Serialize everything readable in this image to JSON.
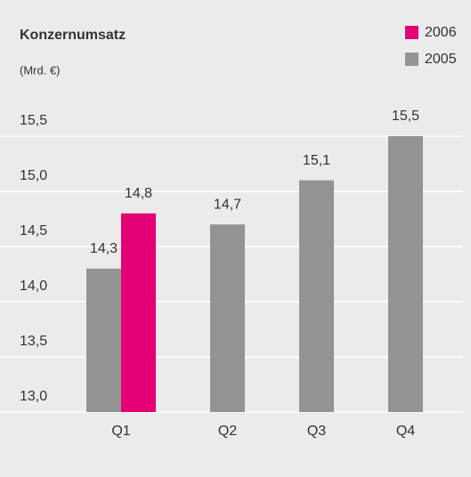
{
  "chart_data": {
    "type": "bar",
    "title": "Konzernumsatz",
    "subtitle": "(Mrd. €)",
    "categories": [
      "Q1",
      "Q2",
      "Q3",
      "Q4"
    ],
    "series": [
      {
        "name": "2006",
        "color": "#e20074",
        "values": [
          14.8,
          null,
          null,
          null
        ],
        "value_labels": [
          "14,8",
          null,
          null,
          null
        ]
      },
      {
        "name": "2005",
        "color": "#939393",
        "values": [
          14.3,
          14.7,
          15.1,
          15.5
        ],
        "value_labels": [
          "14,3",
          "14,7",
          "15,1",
          "15,5"
        ]
      }
    ],
    "ylim": [
      13.0,
      15.5
    ],
    "yticks": [
      {
        "value": 13.0,
        "label": "13,0"
      },
      {
        "value": 13.5,
        "label": "13,5"
      },
      {
        "value": 14.0,
        "label": "14,0"
      },
      {
        "value": 14.5,
        "label": "14,5"
      },
      {
        "value": 15.0,
        "label": "15,0"
      },
      {
        "value": 15.5,
        "label": "15,5"
      }
    ],
    "grid": true,
    "legend": "top-right"
  }
}
